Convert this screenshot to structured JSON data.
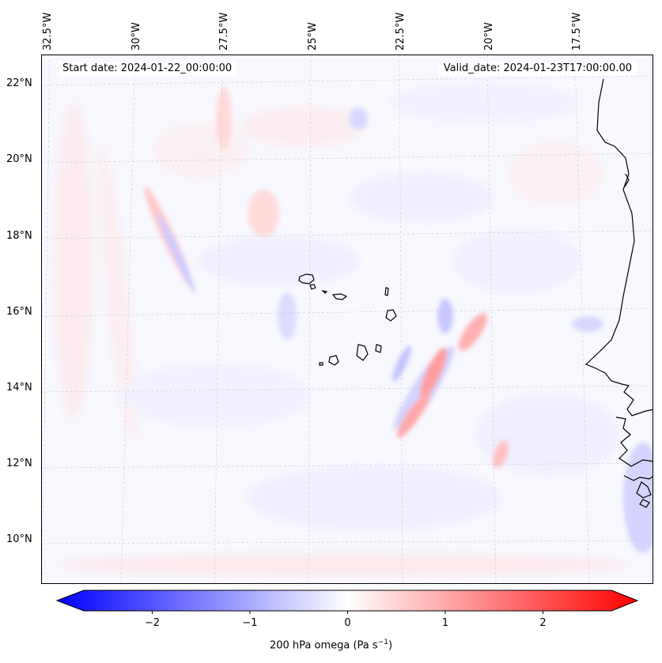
{
  "header": {
    "start_date": "Start date: 2024-01-22_00:00:00",
    "valid_date": "Valid_date: 2024-01-23T17:00:00.00"
  },
  "longitude_labels": [
    "32.5°W",
    "30°W",
    "27.5°W",
    "25°W",
    "22.5°W",
    "20°W",
    "17.5°W"
  ],
  "latitude_labels": [
    "22°N",
    "20°N",
    "18°N",
    "16°N",
    "14°N",
    "12°N",
    "10°N"
  ],
  "colorbar": {
    "title": "200 hPa omega (Pa s",
    "title_sup": "−1",
    "title_end": ")",
    "ticks": [
      "−2",
      "−1",
      "0",
      "1",
      "2"
    ],
    "min": -2.7,
    "max": 2.7,
    "color_low": "#0000ff",
    "color_mid": "#ffffff",
    "color_high": "#ff0000"
  },
  "colors": {
    "coastline": "#000000",
    "gridline": "#b0b0b0"
  }
}
